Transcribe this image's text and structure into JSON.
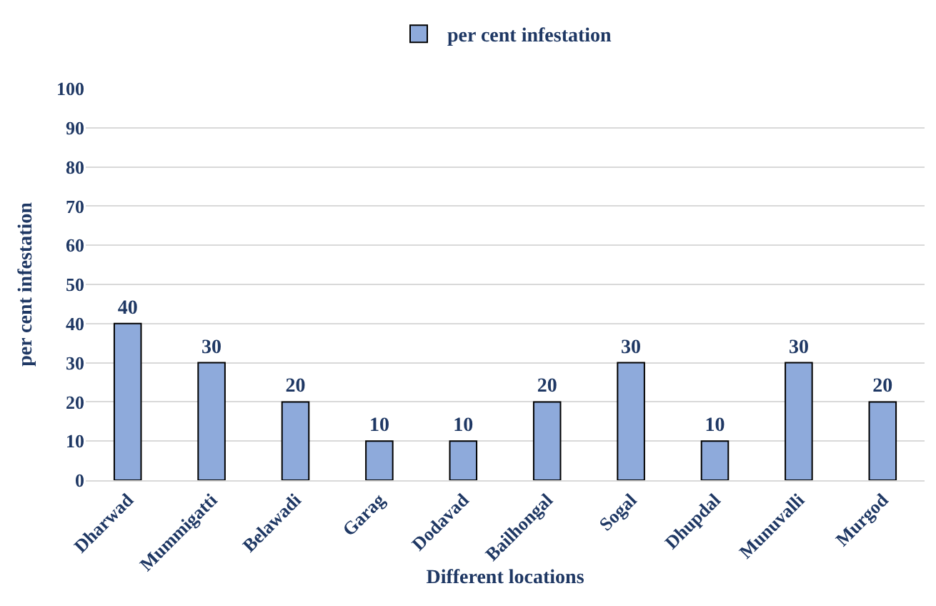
{
  "chart_data": {
    "type": "bar",
    "xlabel": "Different locations",
    "ylabel": "per cent infestation",
    "categories": [
      "Dharwad",
      "Mummigatti",
      "Belawadi",
      "Garag",
      "Dodavad",
      "Bailhongal",
      "Sogal",
      "Dhupdal",
      "Munuvalli",
      "Murgod"
    ],
    "series": [
      {
        "name": "per cent infestation",
        "color": "#8eaadb",
        "values": [
          40,
          30,
          20,
          10,
          10,
          20,
          30,
          10,
          30,
          20
        ]
      }
    ],
    "ylim": [
      0,
      100
    ],
    "yticks": [
      0,
      10,
      20,
      30,
      40,
      50,
      60,
      70,
      80,
      90,
      100
    ],
    "grid": "y",
    "legend": "top",
    "data_labels": true
  }
}
